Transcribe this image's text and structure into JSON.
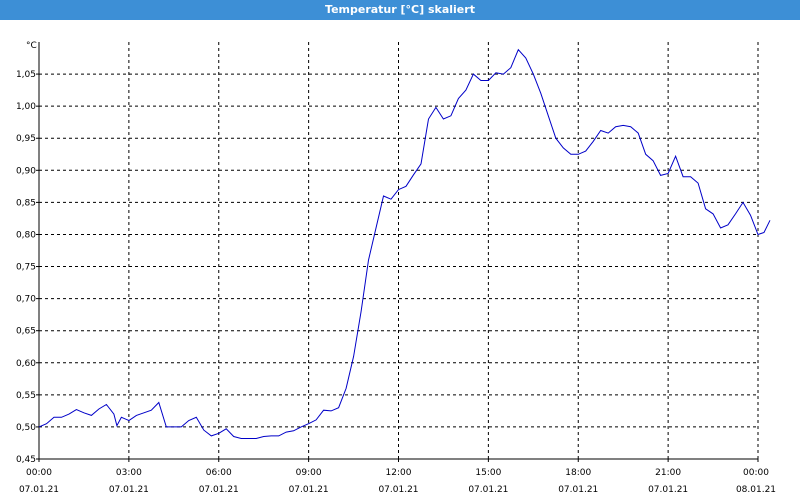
{
  "window": {
    "title": "Temperatur [°C] skaliert"
  },
  "colors": {
    "titlebar": "#3d8fd6",
    "line": "#0000c8",
    "grid": "#000000",
    "axis": "#000000"
  },
  "chart_data": {
    "type": "line",
    "ylabel": "°C",
    "ylim": [
      0.45,
      1.1
    ],
    "grid": true,
    "grid_style": "dashed",
    "yticks": [
      "0,45",
      "0,50",
      "0,55",
      "0,60",
      "0,65",
      "0,70",
      "0,75",
      "0,80",
      "0,85",
      "0,90",
      "0,95",
      "1,00",
      "1,05"
    ],
    "xlim_hours": [
      0,
      24
    ],
    "xticks": [
      {
        "time": "00:00",
        "date": "07.01.21"
      },
      {
        "time": "03:00",
        "date": "07.01.21"
      },
      {
        "time": "06:00",
        "date": "07.01.21"
      },
      {
        "time": "09:00",
        "date": "07.01.21"
      },
      {
        "time": "12:00",
        "date": "07.01.21"
      },
      {
        "time": "15:00",
        "date": "07.01.21"
      },
      {
        "time": "18:00",
        "date": "07.01.21"
      },
      {
        "time": "21:00",
        "date": "07.01.21"
      },
      {
        "time": "00:00",
        "date": "08.01.21"
      }
    ],
    "series": [
      {
        "points": [
          [
            0.0,
            0.5
          ],
          [
            0.25,
            0.505
          ],
          [
            0.5,
            0.515
          ],
          [
            0.75,
            0.515
          ],
          [
            1.0,
            0.52
          ],
          [
            1.25,
            0.527
          ],
          [
            1.5,
            0.522
          ],
          [
            1.75,
            0.518
          ],
          [
            2.0,
            0.528
          ],
          [
            2.25,
            0.535
          ],
          [
            2.5,
            0.52
          ],
          [
            2.6,
            0.502
          ],
          [
            2.75,
            0.515
          ],
          [
            3.0,
            0.51
          ],
          [
            3.25,
            0.518
          ],
          [
            3.5,
            0.522
          ],
          [
            3.75,
            0.526
          ],
          [
            4.0,
            0.538
          ],
          [
            4.25,
            0.5
          ],
          [
            4.5,
            0.5
          ],
          [
            4.75,
            0.5
          ],
          [
            5.0,
            0.51
          ],
          [
            5.25,
            0.515
          ],
          [
            5.5,
            0.495
          ],
          [
            5.75,
            0.486
          ],
          [
            6.0,
            0.49
          ],
          [
            6.25,
            0.497
          ],
          [
            6.5,
            0.485
          ],
          [
            6.75,
            0.482
          ],
          [
            7.0,
            0.482
          ],
          [
            7.25,
            0.482
          ],
          [
            7.5,
            0.485
          ],
          [
            7.75,
            0.486
          ],
          [
            8.0,
            0.486
          ],
          [
            8.25,
            0.492
          ],
          [
            8.5,
            0.494
          ],
          [
            8.75,
            0.5
          ],
          [
            9.0,
            0.505
          ],
          [
            9.25,
            0.511
          ],
          [
            9.5,
            0.526
          ],
          [
            9.75,
            0.525
          ],
          [
            10.0,
            0.53
          ],
          [
            10.25,
            0.56
          ],
          [
            10.5,
            0.61
          ],
          [
            10.75,
            0.68
          ],
          [
            11.0,
            0.76
          ],
          [
            11.25,
            0.81
          ],
          [
            11.5,
            0.86
          ],
          [
            11.75,
            0.855
          ],
          [
            12.0,
            0.87
          ],
          [
            12.25,
            0.875
          ],
          [
            12.5,
            0.893
          ],
          [
            12.75,
            0.91
          ],
          [
            13.0,
            0.98
          ],
          [
            13.25,
            0.998
          ],
          [
            13.5,
            0.98
          ],
          [
            13.75,
            0.985
          ],
          [
            14.0,
            1.012
          ],
          [
            14.25,
            1.025
          ],
          [
            14.5,
            1.05
          ],
          [
            14.75,
            1.04
          ],
          [
            15.0,
            1.04
          ],
          [
            15.25,
            1.052
          ],
          [
            15.5,
            1.05
          ],
          [
            15.75,
            1.06
          ],
          [
            16.0,
            1.088
          ],
          [
            16.25,
            1.075
          ],
          [
            16.5,
            1.05
          ],
          [
            16.75,
            1.02
          ],
          [
            17.0,
            0.985
          ],
          [
            17.25,
            0.95
          ],
          [
            17.5,
            0.935
          ],
          [
            17.75,
            0.925
          ],
          [
            18.0,
            0.925
          ],
          [
            18.25,
            0.93
          ],
          [
            18.5,
            0.945
          ],
          [
            18.75,
            0.962
          ],
          [
            19.0,
            0.958
          ],
          [
            19.25,
            0.968
          ],
          [
            19.5,
            0.97
          ],
          [
            19.75,
            0.968
          ],
          [
            20.0,
            0.958
          ],
          [
            20.25,
            0.925
          ],
          [
            20.5,
            0.915
          ],
          [
            20.75,
            0.892
          ],
          [
            21.0,
            0.895
          ],
          [
            21.25,
            0.922
          ],
          [
            21.5,
            0.89
          ],
          [
            21.75,
            0.89
          ],
          [
            22.0,
            0.88
          ],
          [
            22.25,
            0.84
          ],
          [
            22.5,
            0.832
          ],
          [
            22.75,
            0.81
          ],
          [
            23.0,
            0.815
          ],
          [
            23.25,
            0.832
          ],
          [
            23.5,
            0.85
          ],
          [
            23.75,
            0.83
          ],
          [
            24.0,
            0.8
          ],
          [
            24.2,
            0.803
          ],
          [
            24.4,
            0.822
          ]
        ]
      }
    ]
  }
}
